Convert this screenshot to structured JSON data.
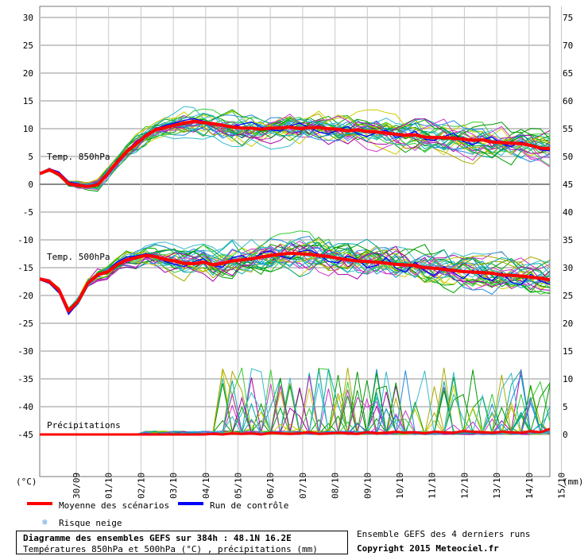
{
  "chart_data": {
    "type": "line",
    "left_axis": {
      "unit_label": "(°C)",
      "ticks": [
        30,
        25,
        20,
        15,
        10,
        5,
        0,
        -5,
        -10,
        -15,
        -20,
        -25,
        -30,
        -35,
        -40,
        -45
      ]
    },
    "right_axis": {
      "unit_label": "(mm)",
      "ticks": [
        75,
        70,
        65,
        60,
        55,
        50,
        45,
        40,
        35,
        30,
        25,
        20,
        15,
        10,
        5,
        0
      ]
    },
    "x_tick_labels": [
      "30/09",
      "01/10",
      "02/10",
      "03/10",
      "04/10",
      "05/10",
      "06/10",
      "07/10",
      "08/10",
      "09/10",
      "10/10",
      "11/10",
      "12/10",
      "13/10",
      "14/10",
      "15/10"
    ],
    "panel_labels": {
      "t850": "Temp. 850hPa",
      "t500": "Temp. 500hPa",
      "precip": "Précipitations"
    },
    "mean_t850": [
      1.9,
      2.6,
      1.8,
      0.1,
      -0.2,
      -0.4,
      -0.1,
      1.8,
      3.9,
      5.8,
      7.2,
      8.7,
      9.8,
      10.2,
      10.6,
      11.0,
      11.3,
      11.1,
      10.9,
      10.6,
      10.3,
      10.1,
      10.1,
      9.9,
      10.1,
      10.1,
      10.3,
      10.0,
      10.2,
      10.2,
      10.0,
      9.9,
      9.6,
      9.8,
      9.5,
      9.4,
      9.2,
      9.0,
      8.8,
      8.9,
      8.5,
      8.4,
      8.4,
      8.3,
      8.1,
      7.9,
      8.0,
      7.6,
      7.5,
      7.4,
      7.3,
      7.0,
      6.5,
      6.4
    ],
    "mean_t500": [
      -17.0,
      -17.5,
      -19.0,
      -22.8,
      -21.0,
      -17.8,
      -16.3,
      -15.8,
      -14.5,
      -13.6,
      -13.2,
      -12.8,
      -13.0,
      -13.5,
      -13.8,
      -14.2,
      -14.3,
      -14.0,
      -14.5,
      -14.2,
      -13.8,
      -13.6,
      -13.4,
      -13.1,
      -12.8,
      -12.6,
      -12.4,
      -12.5,
      -12.6,
      -12.8,
      -13.0,
      -13.3,
      -13.6,
      -13.8,
      -13.9,
      -14.0,
      -14.2,
      -14.4,
      -14.5,
      -14.6,
      -15.0,
      -15.1,
      -15.3,
      -15.5,
      -15.7,
      -15.8,
      -15.9,
      -16.0,
      -16.3,
      -16.4,
      -16.5,
      -16.7,
      -16.9,
      -17.2
    ],
    "mean_precip": [
      0,
      0,
      0,
      0,
      0,
      0,
      0,
      0,
      0,
      0,
      0,
      0,
      0,
      0,
      0,
      0,
      0,
      0,
      0.1,
      0,
      0.2,
      0.1,
      0.2,
      0,
      0.3,
      0.2,
      0.1,
      0.2,
      0.4,
      0.1,
      0.2,
      0.3,
      0.2,
      0.1,
      0.4,
      0.2,
      0.3,
      0.5,
      0.3,
      0.4,
      0.2,
      0.5,
      0.4,
      0.3,
      0.6,
      0.5,
      0.4,
      0.3,
      0.5,
      0.4,
      0.3,
      0.6,
      0.4,
      1.0
    ],
    "control_t850": [
      2.0,
      2.8,
      2.2,
      0.4,
      0.1,
      -0.3,
      0.2,
      2.0,
      4.1,
      6.1,
      7.5,
      8.9,
      10.0,
      10.6,
      11.0,
      11.5,
      11.8,
      11.4,
      11.0,
      10.6,
      10.4,
      10.8,
      11.2,
      10.3,
      9.8,
      9.6,
      10.5,
      11.0,
      10.2,
      9.4,
      9.0,
      9.8,
      10.4,
      9.1,
      8.6,
      9.3,
      9.7,
      8.4,
      8.8,
      9.5,
      8.1,
      7.9,
      8.6,
      9.2,
      7.7,
      7.1,
      8.0,
      8.5,
      7.3,
      6.8,
      7.7,
      7.0,
      6.2,
      6.0
    ],
    "control_t500": [
      -17.2,
      -17.8,
      -19.5,
      -23.4,
      -21.3,
      -18.0,
      -16.6,
      -15.6,
      -14.0,
      -13.1,
      -12.9,
      -12.5,
      -12.8,
      -13.9,
      -14.4,
      -14.8,
      -13.9,
      -13.4,
      -14.6,
      -14.9,
      -13.2,
      -12.8,
      -13.7,
      -12.4,
      -12.0,
      -12.9,
      -13.4,
      -12.1,
      -11.8,
      -12.6,
      -13.9,
      -14.1,
      -12.9,
      -13.5,
      -15.0,
      -14.6,
      -13.2,
      -15.1,
      -15.8,
      -14.0,
      -15.6,
      -16.4,
      -14.8,
      -15.9,
      -17.0,
      -15.4,
      -16.8,
      -17.3,
      -15.9,
      -17.6,
      -18.1,
      -16.2,
      -17.4,
      -18.0
    ],
    "series_colors": {
      "mean": "#ff0000",
      "control": "#0000ff",
      "members": [
        "#00a000",
        "#33cc33",
        "#009900",
        "#aaaa00",
        "#cccc00",
        "#aa00aa",
        "#cc33cc",
        "#00aaaa",
        "#33bbcc",
        "#2288dd"
      ]
    },
    "legend": {
      "mean": "Moyenne des scénarios",
      "control": "Run de contrôle",
      "snow": "Risque neige"
    }
  },
  "footer": {
    "title": "Diagramme des ensembles GEFS sur 384h : 48.1N 16.2E",
    "subtitle": "Températures 850hPa et 500hPa (°C) , précipitations (mm)",
    "runs_note": "Ensemble GEFS des 4 derniers runs",
    "copyright": "Copyright 2015 Meteociel.fr"
  }
}
